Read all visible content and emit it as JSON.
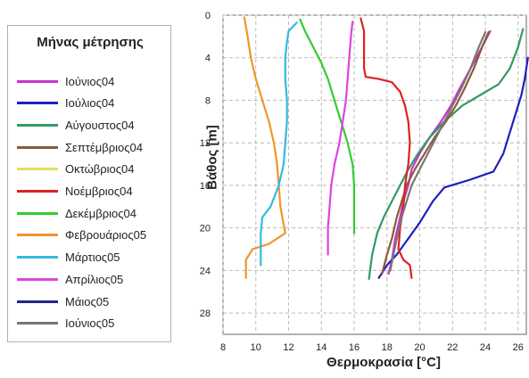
{
  "chart_data": {
    "type": "line",
    "legend_title": "Μήνας μέτρησης",
    "legend_position": "left",
    "xlabel": "Θερμοκρασία [°C]",
    "ylabel": "Βάθος [m]",
    "xlim": [
      8,
      26.5
    ],
    "ylim": [
      0,
      30
    ],
    "y_inverted": true,
    "x_axis_position": "bottom",
    "grid": true,
    "xticks": [
      8,
      10,
      12,
      14,
      16,
      18,
      20,
      22,
      24,
      26
    ],
    "yticks": [
      0,
      4,
      8,
      12,
      16,
      20,
      24,
      28
    ],
    "series": [
      {
        "name": "Ιούνιος04",
        "color": "#cc33cc",
        "points": [
          [
            24.3,
            1.5
          ],
          [
            23.8,
            3
          ],
          [
            23.1,
            5
          ],
          [
            22.4,
            7
          ],
          [
            21.9,
            8.5
          ],
          [
            21.3,
            10
          ],
          [
            20.6,
            11.5
          ],
          [
            20.0,
            13
          ],
          [
            19.5,
            14.5
          ],
          [
            19.3,
            16
          ],
          [
            19.0,
            17.5
          ],
          [
            18.8,
            19
          ],
          [
            18.5,
            21
          ],
          [
            18.3,
            23
          ],
          [
            18.1,
            24.3
          ]
        ]
      },
      {
        "name": "Ιούλιος04",
        "color": "#1f1fbf",
        "points": [
          [
            26.6,
            4
          ],
          [
            26.4,
            6
          ],
          [
            26.2,
            7.5
          ],
          [
            25.9,
            9
          ],
          [
            25.5,
            11
          ],
          [
            25.1,
            13
          ],
          [
            24.5,
            14.7
          ],
          [
            23.0,
            15.5
          ],
          [
            21.5,
            16.2
          ],
          [
            20.8,
            17.5
          ],
          [
            20.0,
            19.5
          ],
          [
            19.3,
            21
          ],
          [
            18.6,
            22.5
          ],
          [
            18.0,
            23.5
          ],
          [
            17.5,
            24.7
          ]
        ]
      },
      {
        "name": "Αύγουστος04",
        "color": "#339966",
        "points": [
          [
            26.3,
            1.3
          ],
          [
            26.0,
            3
          ],
          [
            25.5,
            5
          ],
          [
            24.8,
            6.5
          ],
          [
            23.7,
            7.5
          ],
          [
            22.6,
            8.5
          ],
          [
            21.5,
            10
          ],
          [
            20.6,
            11.5
          ],
          [
            19.9,
            13
          ],
          [
            19.3,
            14.5
          ],
          [
            18.8,
            16
          ],
          [
            18.3,
            17.5
          ],
          [
            17.8,
            19
          ],
          [
            17.4,
            20.5
          ],
          [
            17.1,
            22.5
          ],
          [
            16.9,
            24.8
          ]
        ]
      },
      {
        "name": "Σεπτέμβριος04",
        "color": "#8b5a3a",
        "points": [
          [
            24.2,
            1.6
          ],
          [
            23.8,
            3
          ],
          [
            23.3,
            5
          ],
          [
            22.7,
            7
          ],
          [
            22.2,
            8.5
          ],
          [
            21.6,
            10
          ],
          [
            20.9,
            11.5
          ],
          [
            20.3,
            13
          ],
          [
            19.7,
            14.5
          ],
          [
            19.2,
            16
          ],
          [
            18.9,
            17.5
          ],
          [
            18.6,
            19
          ],
          [
            18.3,
            21
          ],
          [
            18.0,
            22.5
          ],
          [
            17.7,
            24.3
          ]
        ]
      },
      {
        "name": "Οκτώβριος04",
        "color": "#e0e060",
        "points": []
      },
      {
        "name": "Νοέμβριος04",
        "color": "#dd2222",
        "points": [
          [
            16.4,
            0.3
          ],
          [
            16.6,
            1.5
          ],
          [
            16.6,
            3.5
          ],
          [
            16.6,
            5
          ],
          [
            16.7,
            5.8
          ],
          [
            17.5,
            6.0
          ],
          [
            18.3,
            6.3
          ],
          [
            18.8,
            7.2
          ],
          [
            19.1,
            8.5
          ],
          [
            19.3,
            10
          ],
          [
            19.4,
            12
          ],
          [
            19.3,
            14
          ],
          [
            19.1,
            16
          ],
          [
            19.0,
            18
          ],
          [
            18.8,
            20
          ],
          [
            18.7,
            22
          ],
          [
            19.0,
            23
          ],
          [
            19.4,
            23.5
          ],
          [
            19.5,
            24.7
          ]
        ]
      },
      {
        "name": "Δεκέμβριος04",
        "color": "#33cc33",
        "points": [
          [
            12.7,
            0.4
          ],
          [
            13.0,
            1.5
          ],
          [
            13.5,
            3
          ],
          [
            14.0,
            4.5
          ],
          [
            14.4,
            6
          ],
          [
            14.7,
            7.5
          ],
          [
            15.0,
            9
          ],
          [
            15.3,
            10.5
          ],
          [
            15.6,
            12
          ],
          [
            15.9,
            14
          ],
          [
            16.0,
            16
          ],
          [
            16.0,
            18.5
          ],
          [
            16.0,
            20.5
          ]
        ]
      },
      {
        "name": "Φεβρουάριος05",
        "color": "#f0962a",
        "points": [
          [
            9.3,
            0.2
          ],
          [
            9.5,
            2
          ],
          [
            9.7,
            4
          ],
          [
            10.0,
            6
          ],
          [
            10.4,
            8
          ],
          [
            10.8,
            10
          ],
          [
            11.1,
            12
          ],
          [
            11.3,
            14
          ],
          [
            11.4,
            16
          ],
          [
            11.5,
            18
          ],
          [
            11.8,
            20.5
          ],
          [
            10.8,
            21.5
          ],
          [
            9.8,
            22
          ],
          [
            9.4,
            23
          ],
          [
            9.4,
            24.7
          ]
        ]
      },
      {
        "name": "Μάρτιος05",
        "color": "#33bbdd",
        "points": [
          [
            12.5,
            0.7
          ],
          [
            12.0,
            1.5
          ],
          [
            11.9,
            2.5
          ],
          [
            11.8,
            4
          ],
          [
            11.8,
            6
          ],
          [
            11.9,
            8
          ],
          [
            11.9,
            10
          ],
          [
            11.8,
            12
          ],
          [
            11.7,
            14
          ],
          [
            11.4,
            16
          ],
          [
            10.9,
            18
          ],
          [
            10.4,
            19
          ],
          [
            10.3,
            20.5
          ],
          [
            10.3,
            22
          ],
          [
            10.3,
            23.5
          ]
        ]
      },
      {
        "name": "Απρίλιος05",
        "color": "#dd44dd",
        "points": [
          [
            15.9,
            0.6
          ],
          [
            15.8,
            2
          ],
          [
            15.7,
            4
          ],
          [
            15.6,
            6
          ],
          [
            15.5,
            8
          ],
          [
            15.3,
            10
          ],
          [
            15.1,
            12
          ],
          [
            14.8,
            14
          ],
          [
            14.6,
            16
          ],
          [
            14.5,
            18
          ],
          [
            14.4,
            20
          ],
          [
            14.4,
            22.5
          ]
        ]
      },
      {
        "name": "Μάιος05",
        "color": "#22228a",
        "points": []
      },
      {
        "name": "Ιούνιος05",
        "color": "#777777",
        "points": [
          [
            24.0,
            1.6
          ],
          [
            23.6,
            3
          ],
          [
            23.1,
            5
          ],
          [
            22.5,
            7
          ],
          [
            22.0,
            8.5
          ],
          [
            21.5,
            10
          ],
          [
            21.0,
            11.5
          ],
          [
            20.5,
            13
          ],
          [
            20.0,
            14.5
          ],
          [
            19.5,
            16
          ],
          [
            19.2,
            17.5
          ],
          [
            18.9,
            19
          ],
          [
            18.6,
            21
          ],
          [
            18.4,
            22.5
          ],
          [
            18.2,
            24
          ]
        ]
      }
    ]
  }
}
